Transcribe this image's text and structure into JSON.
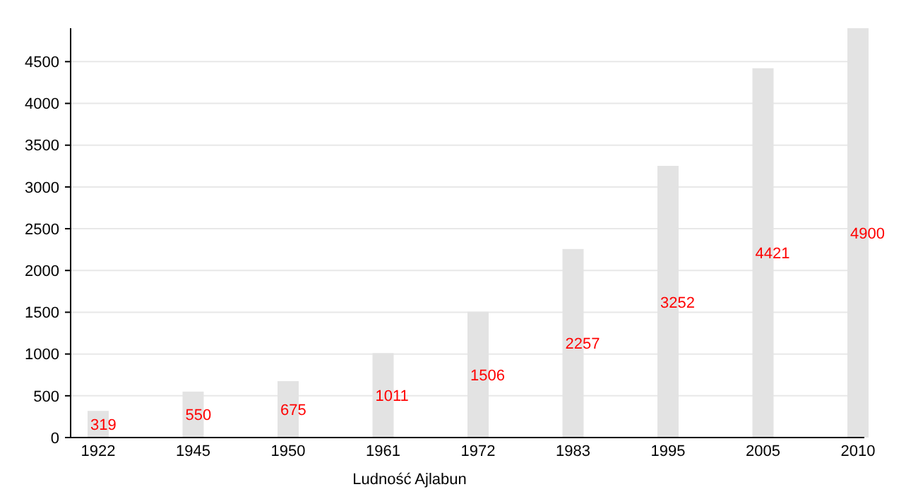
{
  "chart_data": {
    "type": "bar",
    "xlabel": "Ludność Ajlabun",
    "categories": [
      "1922",
      "1945",
      "1950",
      "1961",
      "1972",
      "1983",
      "1995",
      "2005",
      "2010"
    ],
    "values": [
      319,
      550,
      675,
      1011,
      1506,
      2257,
      3252,
      4421,
      4900
    ],
    "color": "#e3e3e3",
    "data_labels": true,
    "ylim": [
      0,
      4900
    ],
    "yticks": [
      0,
      500,
      1000,
      1500,
      2000,
      2500,
      3000,
      3500,
      4000,
      4500
    ],
    "grid": "y"
  }
}
